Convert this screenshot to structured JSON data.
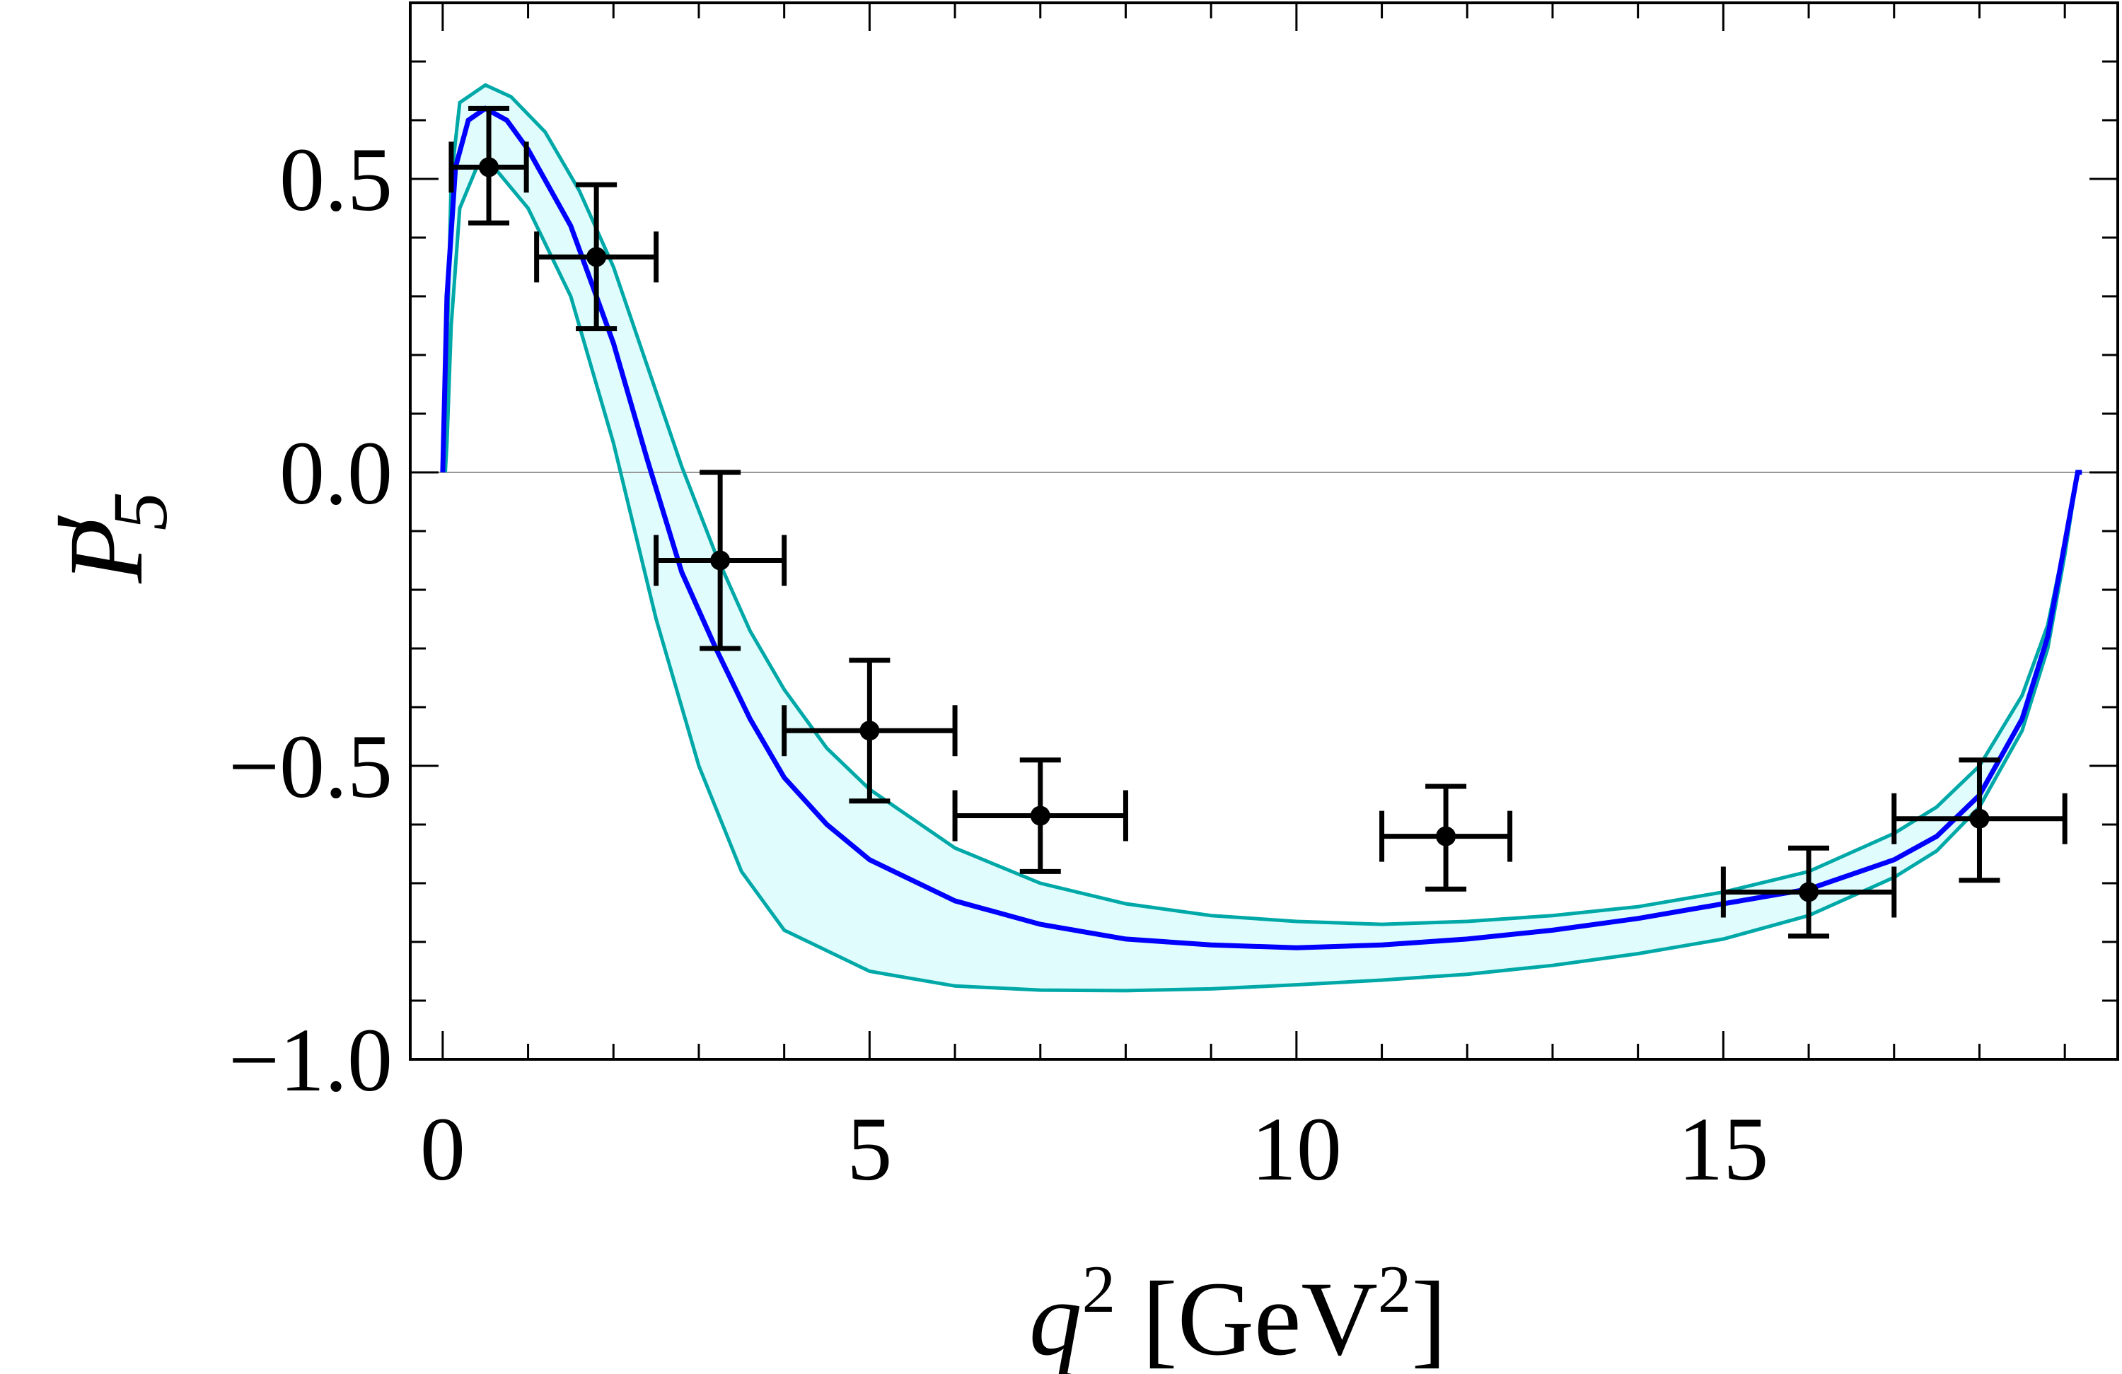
{
  "chart_data": {
    "type": "line",
    "title": "",
    "xlabel": {
      "main": "q",
      "sup": "2",
      "unit_open": " [GeV",
      "unit_sup": "2",
      "unit_close": "]"
    },
    "ylabel": {
      "main": "P",
      "prime": "′",
      "sub": "5"
    },
    "xlim": [
      -0.38,
      19.62
    ],
    "ylim": [
      -1.0,
      0.8
    ],
    "x_ticks": [
      0,
      5,
      10,
      15
    ],
    "x_tick_labels": [
      "0",
      "5",
      "10",
      "15"
    ],
    "y_ticks": [
      0.5,
      0.0,
      -0.5,
      -1.0
    ],
    "y_tick_labels": [
      "0.5",
      "0.0",
      "−0.5",
      "−1.0"
    ],
    "grid": false,
    "zero_line": true,
    "colors": {
      "central": "#0000ff",
      "band_edge": "#00a8a8",
      "band_fill": "#e0fcfc",
      "data": "#000000",
      "zero_line": "#999999"
    },
    "series": [
      {
        "role": "central",
        "points": [
          [
            0.0,
            0
          ],
          [
            0.05,
            0.3
          ],
          [
            0.15,
            0.52
          ],
          [
            0.3,
            0.6
          ],
          [
            0.5,
            0.62
          ],
          [
            0.75,
            0.6
          ],
          [
            1.0,
            0.55
          ],
          [
            1.5,
            0.42
          ],
          [
            2.0,
            0.22
          ],
          [
            2.4,
            0.02
          ],
          [
            2.8,
            -0.17
          ],
          [
            3.2,
            -0.3
          ],
          [
            3.6,
            -0.42
          ],
          [
            4.0,
            -0.52
          ],
          [
            4.5,
            -0.6
          ],
          [
            5,
            -0.66
          ],
          [
            6,
            -0.73
          ],
          [
            7,
            -0.77
          ],
          [
            8,
            -0.795
          ],
          [
            9,
            -0.805
          ],
          [
            10,
            -0.81
          ],
          [
            11,
            -0.805
          ],
          [
            12,
            -0.795
          ],
          [
            13,
            -0.78
          ],
          [
            14,
            -0.76
          ],
          [
            15,
            -0.735
          ],
          [
            16,
            -0.71
          ],
          [
            17,
            -0.66
          ],
          [
            17.5,
            -0.62
          ],
          [
            18,
            -0.55
          ],
          [
            18.5,
            -0.42
          ],
          [
            18.8,
            -0.28
          ],
          [
            19.0,
            -0.12
          ],
          [
            19.15,
            0
          ],
          [
            19.2,
            0
          ]
        ]
      },
      {
        "role": "band_upper",
        "points": [
          [
            0.03,
            0
          ],
          [
            0.05,
            0.2
          ],
          [
            0.1,
            0.5
          ],
          [
            0.2,
            0.63
          ],
          [
            0.5,
            0.66
          ],
          [
            0.8,
            0.64
          ],
          [
            1.2,
            0.58
          ],
          [
            1.6,
            0.48
          ],
          [
            2.0,
            0.35
          ],
          [
            2.4,
            0.18
          ],
          [
            2.8,
            0.01
          ],
          [
            3.2,
            -0.14
          ],
          [
            3.6,
            -0.27
          ],
          [
            4,
            -0.37
          ],
          [
            4.5,
            -0.47
          ],
          [
            5,
            -0.54
          ],
          [
            6,
            -0.64
          ],
          [
            7,
            -0.7
          ],
          [
            8,
            -0.735
          ],
          [
            9,
            -0.755
          ],
          [
            10,
            -0.765
          ],
          [
            11,
            -0.77
          ],
          [
            12,
            -0.765
          ],
          [
            13,
            -0.755
          ],
          [
            14,
            -0.74
          ],
          [
            15,
            -0.715
          ],
          [
            16,
            -0.68
          ],
          [
            17,
            -0.615
          ],
          [
            17.5,
            -0.57
          ],
          [
            18,
            -0.5
          ],
          [
            18.5,
            -0.38
          ],
          [
            18.8,
            -0.26
          ],
          [
            19,
            -0.12
          ],
          [
            19.15,
            0
          ]
        ]
      },
      {
        "role": "band_lower",
        "points": [
          [
            0.03,
            0
          ],
          [
            0.05,
            0.05
          ],
          [
            0.1,
            0.25
          ],
          [
            0.2,
            0.45
          ],
          [
            0.4,
            0.52
          ],
          [
            0.6,
            0.52
          ],
          [
            1.0,
            0.45
          ],
          [
            1.5,
            0.3
          ],
          [
            2.0,
            0.05
          ],
          [
            2.5,
            -0.25
          ],
          [
            3.0,
            -0.5
          ],
          [
            3.5,
            -0.68
          ],
          [
            4,
            -0.78
          ],
          [
            5,
            -0.85
          ],
          [
            6,
            -0.875
          ],
          [
            7,
            -0.882
          ],
          [
            8,
            -0.883
          ],
          [
            9,
            -0.88
          ],
          [
            10,
            -0.873
          ],
          [
            11,
            -0.865
          ],
          [
            12,
            -0.855
          ],
          [
            13,
            -0.84
          ],
          [
            14,
            -0.82
          ],
          [
            15,
            -0.795
          ],
          [
            16,
            -0.755
          ],
          [
            17,
            -0.69
          ],
          [
            17.5,
            -0.645
          ],
          [
            18,
            -0.57
          ],
          [
            18.5,
            -0.44
          ],
          [
            18.8,
            -0.3
          ],
          [
            19,
            -0.14
          ],
          [
            19.15,
            0
          ]
        ]
      },
      {
        "role": "data",
        "points": [
          {
            "x": 0.54,
            "xmin": 0.1,
            "xmax": 0.98,
            "y": 0.52,
            "ymin": 0.425,
            "ymax": 0.62
          },
          {
            "x": 1.8,
            "xmin": 1.1,
            "xmax": 2.5,
            "y": 0.367,
            "ymin": 0.245,
            "ymax": 0.49
          },
          {
            "x": 3.25,
            "xmin": 2.5,
            "xmax": 4.0,
            "y": -0.15,
            "ymin": -0.3,
            "ymax": 0.0
          },
          {
            "x": 5.0,
            "xmin": 4.0,
            "xmax": 6.0,
            "y": -0.44,
            "ymin": -0.56,
            "ymax": -0.32
          },
          {
            "x": 7.0,
            "xmin": 6.0,
            "xmax": 8.0,
            "y": -0.585,
            "ymin": -0.68,
            "ymax": -0.49
          },
          {
            "x": 11.75,
            "xmin": 11.0,
            "xmax": 12.5,
            "y": -0.62,
            "ymin": -0.71,
            "ymax": -0.535
          },
          {
            "x": 16.0,
            "xmin": 15.0,
            "xmax": 17.0,
            "y": -0.715,
            "ymin": -0.79,
            "ymax": -0.64
          },
          {
            "x": 18.0,
            "xmin": 17.0,
            "xmax": 19.0,
            "y": -0.59,
            "ymin": -0.695,
            "ymax": -0.49
          }
        ]
      }
    ]
  }
}
